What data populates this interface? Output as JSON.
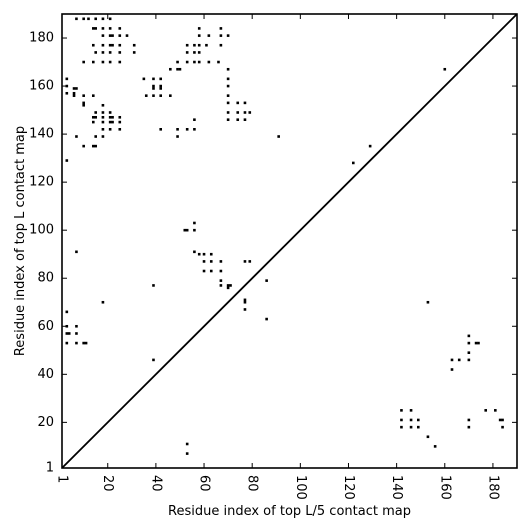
{
  "chart_data": {
    "type": "scatter",
    "title": "",
    "xlabel": "Residue index of top L/5 contact map",
    "ylabel": "Residue index of top L contact map",
    "xlim": [
      1,
      190
    ],
    "ylim": [
      1,
      190
    ],
    "x_ticks": [
      1,
      20,
      40,
      60,
      80,
      100,
      120,
      140,
      160,
      180
    ],
    "y_ticks": [
      1,
      20,
      40,
      60,
      80,
      100,
      120,
      140,
      160,
      180
    ],
    "x_tick_labels": [
      "1",
      "20",
      "40",
      "60",
      "80",
      "100",
      "120",
      "140",
      "160",
      "180"
    ],
    "y_tick_labels": [
      "1",
      "20",
      "40",
      "60",
      "80",
      "100",
      "120",
      "140",
      "160",
      "180"
    ],
    "grid": false,
    "diagonal": {
      "from": [
        1,
        1
      ],
      "to": [
        190,
        190
      ]
    },
    "series": [
      {
        "region": "upper-left",
        "points": [
          [
            7,
            188
          ],
          [
            10,
            188
          ],
          [
            12,
            188
          ],
          [
            15,
            188
          ],
          [
            18,
            188
          ],
          [
            21,
            188
          ],
          [
            14,
            184
          ],
          [
            15,
            184
          ],
          [
            18,
            184
          ],
          [
            21,
            184
          ],
          [
            25,
            184
          ],
          [
            58,
            184
          ],
          [
            67,
            184
          ],
          [
            18,
            181
          ],
          [
            21,
            181
          ],
          [
            22,
            181
          ],
          [
            25,
            181
          ],
          [
            28,
            181
          ],
          [
            58,
            181
          ],
          [
            62,
            181
          ],
          [
            67,
            181
          ],
          [
            70,
            181
          ],
          [
            14,
            177
          ],
          [
            18,
            177
          ],
          [
            21,
            177
          ],
          [
            22,
            177
          ],
          [
            25,
            177
          ],
          [
            31,
            177
          ],
          [
            53,
            177
          ],
          [
            56,
            177
          ],
          [
            58,
            177
          ],
          [
            61,
            177
          ],
          [
            67,
            177
          ],
          [
            15,
            174
          ],
          [
            18,
            174
          ],
          [
            21,
            174
          ],
          [
            25,
            174
          ],
          [
            31,
            174
          ],
          [
            53,
            174
          ],
          [
            56,
            174
          ],
          [
            58,
            174
          ],
          [
            10,
            170
          ],
          [
            14,
            170
          ],
          [
            18,
            170
          ],
          [
            21,
            170
          ],
          [
            25,
            170
          ],
          [
            49,
            170
          ],
          [
            53,
            170
          ],
          [
            56,
            170
          ],
          [
            58,
            170
          ],
          [
            62,
            170
          ],
          [
            66,
            170
          ],
          [
            46,
            167
          ],
          [
            49,
            167
          ],
          [
            50,
            167
          ],
          [
            70,
            167
          ],
          [
            160,
            167
          ],
          [
            3,
            163
          ],
          [
            3,
            160
          ],
          [
            3,
            157
          ],
          [
            6,
            159
          ],
          [
            7,
            159
          ],
          [
            6,
            157
          ],
          [
            6,
            156
          ],
          [
            10,
            156
          ],
          [
            14,
            156
          ],
          [
            35,
            163
          ],
          [
            39,
            163
          ],
          [
            42,
            163
          ],
          [
            39,
            160
          ],
          [
            42,
            160
          ],
          [
            39,
            159
          ],
          [
            42,
            159
          ],
          [
            36,
            156
          ],
          [
            39,
            156
          ],
          [
            42,
            156
          ],
          [
            46,
            156
          ],
          [
            70,
            163
          ],
          [
            70,
            160
          ],
          [
            70,
            156
          ],
          [
            70,
            153
          ],
          [
            74,
            153
          ],
          [
            77,
            153
          ],
          [
            10,
            153
          ],
          [
            10,
            152
          ],
          [
            18,
            152
          ],
          [
            15,
            149
          ],
          [
            18,
            149
          ],
          [
            21,
            149
          ],
          [
            14,
            147
          ],
          [
            15,
            147
          ],
          [
            18,
            147
          ],
          [
            21,
            147
          ],
          [
            22,
            147
          ],
          [
            25,
            147
          ],
          [
            14,
            145
          ],
          [
            18,
            145
          ],
          [
            21,
            145
          ],
          [
            22,
            145
          ],
          [
            25,
            145
          ],
          [
            18,
            142
          ],
          [
            21,
            142
          ],
          [
            25,
            142
          ],
          [
            42,
            142
          ],
          [
            49,
            142
          ],
          [
            53,
            142
          ],
          [
            56,
            142
          ],
          [
            56,
            146
          ],
          [
            70,
            149
          ],
          [
            70,
            146
          ],
          [
            74,
            149
          ],
          [
            74,
            146
          ],
          [
            77,
            149
          ],
          [
            79,
            149
          ],
          [
            77,
            146
          ],
          [
            7,
            139
          ],
          [
            15,
            139
          ],
          [
            18,
            139
          ],
          [
            49,
            139
          ],
          [
            91,
            139
          ],
          [
            10,
            135
          ],
          [
            14,
            135
          ],
          [
            15,
            135
          ],
          [
            3,
            129
          ],
          [
            122,
            128
          ],
          [
            129,
            135
          ],
          [
            52,
            100
          ],
          [
            53,
            100
          ],
          [
            56,
            100
          ],
          [
            56,
            103
          ],
          [
            7,
            91
          ],
          [
            56,
            91
          ],
          [
            58,
            90
          ],
          [
            60,
            90
          ],
          [
            63,
            90
          ],
          [
            60,
            87
          ],
          [
            63,
            87
          ],
          [
            67,
            87
          ],
          [
            60,
            83
          ],
          [
            63,
            83
          ],
          [
            67,
            83
          ],
          [
            77,
            87
          ],
          [
            79,
            87
          ],
          [
            39,
            77
          ],
          [
            67,
            77
          ],
          [
            67,
            79
          ],
          [
            70,
            76
          ],
          [
            70,
            77
          ],
          [
            71,
            77
          ],
          [
            86,
            79
          ],
          [
            18,
            70
          ],
          [
            77,
            70
          ],
          [
            77,
            71
          ],
          [
            77,
            67
          ],
          [
            153,
            70
          ],
          [
            3,
            66
          ],
          [
            3,
            60
          ],
          [
            3,
            57
          ],
          [
            4,
            57
          ],
          [
            7,
            60
          ],
          [
            7,
            57
          ],
          [
            3,
            53
          ],
          [
            7,
            53
          ],
          [
            10,
            53
          ],
          [
            11,
            53
          ],
          [
            86,
            63
          ],
          [
            39,
            46
          ]
        ]
      },
      {
        "region": "lower-right",
        "points": [
          [
            170,
            56
          ],
          [
            170,
            53
          ],
          [
            170,
            49
          ],
          [
            170,
            46
          ],
          [
            173,
            53
          ],
          [
            174,
            53
          ],
          [
            163,
            46
          ],
          [
            166,
            46
          ],
          [
            163,
            42
          ],
          [
            177,
            25
          ],
          [
            181,
            25
          ],
          [
            183,
            21
          ],
          [
            184,
            21
          ],
          [
            184,
            18
          ],
          [
            170,
            21
          ],
          [
            170,
            18
          ],
          [
            142,
            25
          ],
          [
            146,
            25
          ],
          [
            142,
            21
          ],
          [
            146,
            21
          ],
          [
            149,
            21
          ],
          [
            142,
            18
          ],
          [
            146,
            18
          ],
          [
            149,
            18
          ],
          [
            153,
            14
          ],
          [
            156,
            10
          ],
          [
            53,
            11
          ],
          [
            53,
            7
          ]
        ]
      }
    ]
  }
}
